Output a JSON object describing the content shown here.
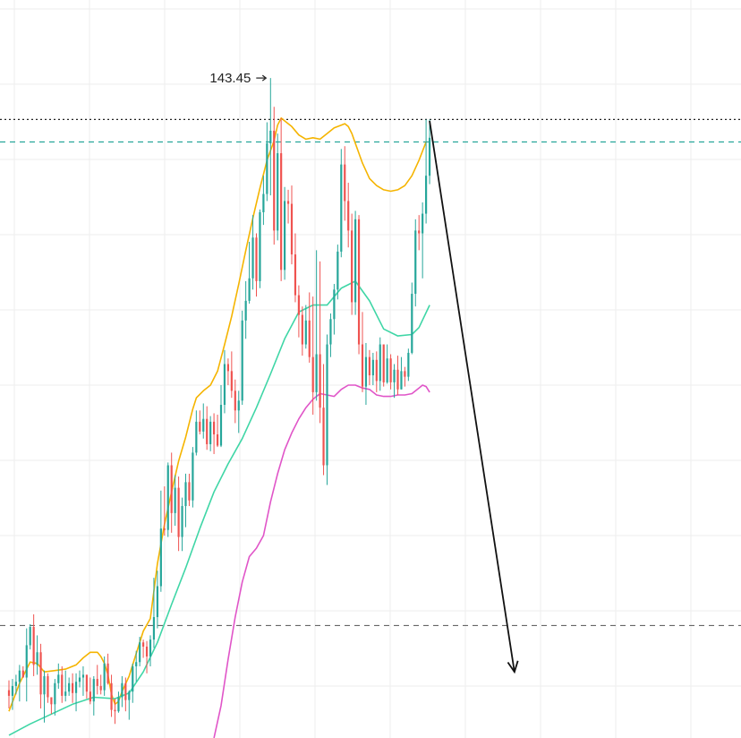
{
  "chart_data": {
    "type": "candlestick",
    "title": "",
    "xlabel": "",
    "ylabel": "",
    "grid": true,
    "ylim": [
      96.5,
      149
    ],
    "colors": {
      "up": "#26a69a",
      "down": "#ef5350",
      "ma_fast": "#f5b400",
      "ma_mid": "#3fd6a6",
      "ma_slow": "#e055c8",
      "resistance": "#222222",
      "support_green": "#26a69a",
      "support_gray": "#666666",
      "arrow": "#111111",
      "grid": "#eeeeee"
    },
    "annotations": {
      "high_label": "143.45",
      "high_value": 143.45
    },
    "levels": {
      "resistance": 140.5,
      "upper_dashed": 138.9,
      "lower_dashed": 104.5
    },
    "projection": {
      "from_bar": 119,
      "from": 140.4,
      "to_bar": 143,
      "to": 101.2
    },
    "candles": [
      [
        99.9,
        100.6,
        98.6,
        99.5
      ],
      [
        99.5,
        100.7,
        98.5,
        100.2
      ],
      [
        100.2,
        101.0,
        99.6,
        100.5
      ],
      [
        100.5,
        101.7,
        99.1,
        101.3
      ],
      [
        101.3,
        101.6,
        100.8,
        100.8
      ],
      [
        100.8,
        104.3,
        99.1,
        103.1
      ],
      [
        103.1,
        104.6,
        102.8,
        104.4
      ],
      [
        104.4,
        105.3,
        100.9,
        101.7
      ],
      [
        101.7,
        103.8,
        101.0,
        102.6
      ],
      [
        102.6,
        103.2,
        98.6,
        99.6
      ],
      [
        99.6,
        101.3,
        97.6,
        100.9
      ],
      [
        100.9,
        101.1,
        99.0,
        99.4
      ],
      [
        99.4,
        99.4,
        98.2,
        98.9
      ],
      [
        98.9,
        100.7,
        98.1,
        100.4
      ],
      [
        100.4,
        101.8,
        100.0,
        101.0
      ],
      [
        101.0,
        101.6,
        99.0,
        99.5
      ],
      [
        99.5,
        101.3,
        99.1,
        99.8
      ],
      [
        99.8,
        100.8,
        99.5,
        100.4
      ],
      [
        100.4,
        101.1,
        99.0,
        99.7
      ],
      [
        99.7,
        101.1,
        98.4,
        100.5
      ],
      [
        100.5,
        101.3,
        100.1,
        100.8
      ],
      [
        100.8,
        101.6,
        99.5,
        101.0
      ],
      [
        101.0,
        101.0,
        99.3,
        99.8
      ],
      [
        99.8,
        100.8,
        98.9,
        99.1
      ],
      [
        99.1,
        100.9,
        98.1,
        100.7
      ],
      [
        100.7,
        101.7,
        99.6,
        100.2
      ],
      [
        100.2,
        101.0,
        99.6,
        99.9
      ],
      [
        99.9,
        102.3,
        99.5,
        101.8
      ],
      [
        101.8,
        102.5,
        100.3,
        100.4
      ],
      [
        100.4,
        101.0,
        98.0,
        98.5
      ],
      [
        98.5,
        99.3,
        97.5,
        98.4
      ],
      [
        98.4,
        99.8,
        98.3,
        99.4
      ],
      [
        99.4,
        100.9,
        98.7,
        100.4
      ],
      [
        100.4,
        100.8,
        98.4,
        99.2
      ],
      [
        99.2,
        99.9,
        97.8,
        99.8
      ],
      [
        99.8,
        101.8,
        99.0,
        101.6
      ],
      [
        101.6,
        102.7,
        100.5,
        101.9
      ],
      [
        101.9,
        103.7,
        101.6,
        103.3
      ],
      [
        103.3,
        103.5,
        102.2,
        103.0
      ],
      [
        103.0,
        103.4,
        101.1,
        102.3
      ],
      [
        102.3,
        103.8,
        101.6,
        103.5
      ],
      [
        103.5,
        107.9,
        102.9,
        105.1
      ],
      [
        105.1,
        108.4,
        104.3,
        107.3
      ],
      [
        107.3,
        114.1,
        106.9,
        111.4
      ],
      [
        111.4,
        114.4,
        110.9,
        111.3
      ],
      [
        111.3,
        116.1,
        110.8,
        115.9
      ],
      [
        115.9,
        116.8,
        111.1,
        112.5
      ],
      [
        112.5,
        115.2,
        111.6,
        114.3
      ],
      [
        114.3,
        115.1,
        109.8,
        110.8
      ],
      [
        110.8,
        113.6,
        109.8,
        113.0
      ],
      [
        113.0,
        115.3,
        111.5,
        114.7
      ],
      [
        114.7,
        115.3,
        113.0,
        113.4
      ],
      [
        113.4,
        117.2,
        112.9,
        116.8
      ],
      [
        116.8,
        119.8,
        116.6,
        119.0
      ],
      [
        119.0,
        119.8,
        118.1,
        118.3
      ],
      [
        118.3,
        120.3,
        117.8,
        119.2
      ],
      [
        119.2,
        120.1,
        117.0,
        117.4
      ],
      [
        117.4,
        119.4,
        116.9,
        119.0
      ],
      [
        119.0,
        119.6,
        116.7,
        118.1
      ],
      [
        118.1,
        119.5,
        117.2,
        117.3
      ],
      [
        117.3,
        121.6,
        117.2,
        120.2
      ],
      [
        120.2,
        124.1,
        119.6,
        123.1
      ],
      [
        123.1,
        123.5,
        121.6,
        122.6
      ],
      [
        122.6,
        124.0,
        120.7,
        121.2
      ],
      [
        121.2,
        122.0,
        118.9,
        119.8
      ],
      [
        119.8,
        121.2,
        118.2,
        120.5
      ],
      [
        120.5,
        126.9,
        120.2,
        126.2
      ],
      [
        126.2,
        129.0,
        124.9,
        127.6
      ],
      [
        127.6,
        131.8,
        127.4,
        129.2
      ],
      [
        129.2,
        133.7,
        128.4,
        132.1
      ],
      [
        132.1,
        132.4,
        127.9,
        129.0
      ],
      [
        129.0,
        134.1,
        128.5,
        133.9
      ],
      [
        133.9,
        136.5,
        133.0,
        135.2
      ],
      [
        135.2,
        140.3,
        134.7,
        138.8
      ],
      [
        138.8,
        143.45,
        135.1,
        139.7
      ],
      [
        139.7,
        141.4,
        131.6,
        132.6
      ],
      [
        132.6,
        139.5,
        131.9,
        138.1
      ],
      [
        138.1,
        140.6,
        129.0,
        129.8
      ],
      [
        129.8,
        135.7,
        129.1,
        134.7
      ],
      [
        134.7,
        135.5,
        133.1,
        134.5
      ],
      [
        134.5,
        135.8,
        130.2,
        130.9
      ],
      [
        130.9,
        132.4,
        127.5,
        128.0
      ],
      [
        128.0,
        128.7,
        125.0,
        126.6
      ],
      [
        126.6,
        127.2,
        123.7,
        124.5
      ],
      [
        124.5,
        127.3,
        124.2,
        126.2
      ],
      [
        126.2,
        128.2,
        123.2,
        123.6
      ],
      [
        123.6,
        127.9,
        119.5,
        121.1
      ],
      [
        121.1,
        131.2,
        120.5,
        123.8
      ],
      [
        123.8,
        130.4,
        118.9,
        120.0
      ],
      [
        120.0,
        123.1,
        115.2,
        115.9
      ],
      [
        115.9,
        125.2,
        114.5,
        124.5
      ],
      [
        124.5,
        126.7,
        123.6,
        126.3
      ],
      [
        126.3,
        128.8,
        125.2,
        128.4
      ],
      [
        128.4,
        131.6,
        127.7,
        131.1
      ],
      [
        131.1,
        138.4,
        130.7,
        137.3
      ],
      [
        137.3,
        138.6,
        133.3,
        134.7
      ],
      [
        134.7,
        136.0,
        131.4,
        132.6
      ],
      [
        132.6,
        133.8,
        126.6,
        127.5
      ],
      [
        127.5,
        134.0,
        126.6,
        133.4
      ],
      [
        133.4,
        133.7,
        123.8,
        124.5
      ],
      [
        124.5,
        126.8,
        121.1,
        121.5
      ],
      [
        121.5,
        124.6,
        120.2,
        123.6
      ],
      [
        123.6,
        124.1,
        121.6,
        122.3
      ],
      [
        122.3,
        123.9,
        121.6,
        123.4
      ],
      [
        123.4,
        124.0,
        121.1,
        121.9
      ],
      [
        121.9,
        125.0,
        121.2,
        124.5
      ],
      [
        124.5,
        124.5,
        121.5,
        121.8
      ],
      [
        121.8,
        124.5,
        121.7,
        123.5
      ],
      [
        123.5,
        123.8,
        121.3,
        121.8
      ],
      [
        121.8,
        123.1,
        120.7,
        122.7
      ],
      [
        122.7,
        123.7,
        120.9,
        121.3
      ],
      [
        121.3,
        123.6,
        121.3,
        122.6
      ],
      [
        122.6,
        122.9,
        121.5,
        122.2
      ],
      [
        122.2,
        124.2,
        121.9,
        123.9
      ],
      [
        123.9,
        128.9,
        123.8,
        128.1
      ],
      [
        128.1,
        133.4,
        127.2,
        132.6
      ],
      [
        132.6,
        133.7,
        131.2,
        132.4
      ],
      [
        132.4,
        134.6,
        129.2,
        133.8
      ],
      [
        133.8,
        140.5,
        133.1,
        136.5
      ],
      [
        136.5,
        140.5,
        135.9,
        139.2
      ]
    ],
    "series": [
      {
        "type": "line",
        "points": [
          [
            0,
            98.4
          ],
          [
            3,
            100.4
          ],
          [
            6,
            101.9
          ],
          [
            8,
            101.8
          ],
          [
            10,
            101.2
          ],
          [
            13,
            101.3
          ],
          [
            16,
            101.4
          ],
          [
            19,
            101.7
          ],
          [
            21,
            102.2
          ],
          [
            23,
            102.6
          ],
          [
            25,
            102.6
          ],
          [
            26,
            102.3
          ],
          [
            27,
            101.8
          ],
          [
            28,
            101.0
          ],
          [
            29,
            99.6
          ],
          [
            30,
            98.9
          ],
          [
            31,
            99.1
          ],
          [
            32,
            99.8
          ],
          [
            34,
            100.9
          ],
          [
            36,
            102.5
          ],
          [
            38,
            104.1
          ],
          [
            40,
            105.0
          ],
          [
            42,
            108.9
          ],
          [
            44,
            111.7
          ],
          [
            46,
            114.0
          ],
          [
            48,
            116.2
          ],
          [
            50,
            117.9
          ],
          [
            52,
            119.9
          ],
          [
            53,
            120.7
          ],
          [
            55,
            121.2
          ],
          [
            57,
            121.6
          ],
          [
            59,
            122.6
          ],
          [
            61,
            124.5
          ],
          [
            63,
            126.5
          ],
          [
            65,
            128.8
          ],
          [
            67,
            131.2
          ],
          [
            69,
            133.5
          ],
          [
            71,
            135.6
          ],
          [
            73,
            137.6
          ],
          [
            75,
            139.0
          ],
          [
            76,
            140.1
          ],
          [
            77,
            140.6
          ],
          [
            78,
            140.4
          ],
          [
            80,
            140.0
          ],
          [
            82,
            139.4
          ],
          [
            84,
            139.1
          ],
          [
            86,
            139.2
          ],
          [
            88,
            139.1
          ],
          [
            90,
            139.5
          ],
          [
            92,
            139.9
          ],
          [
            94,
            140.1
          ],
          [
            95,
            140.2
          ],
          [
            96,
            140.0
          ],
          [
            97,
            139.5
          ],
          [
            98,
            138.8
          ],
          [
            100,
            137.4
          ],
          [
            102,
            136.3
          ],
          [
            104,
            135.8
          ],
          [
            106,
            135.5
          ],
          [
            108,
            135.4
          ],
          [
            110,
            135.5
          ],
          [
            112,
            135.8
          ],
          [
            114,
            136.5
          ],
          [
            116,
            137.6
          ],
          [
            118,
            138.9
          ]
        ]
      },
      {
        "type": "line",
        "points": [
          [
            0,
            96.7
          ],
          [
            6,
            97.5
          ],
          [
            12,
            98.2
          ],
          [
            18,
            98.9
          ],
          [
            24,
            99.4
          ],
          [
            30,
            99.3
          ],
          [
            34,
            99.7
          ],
          [
            38,
            101.2
          ],
          [
            42,
            103.3
          ],
          [
            46,
            106.0
          ],
          [
            50,
            108.6
          ],
          [
            54,
            111.4
          ],
          [
            58,
            114.0
          ],
          [
            62,
            116.0
          ],
          [
            66,
            117.8
          ],
          [
            70,
            120.0
          ],
          [
            74,
            122.4
          ],
          [
            78,
            124.9
          ],
          [
            82,
            126.8
          ],
          [
            86,
            127.3
          ],
          [
            90,
            127.3
          ],
          [
            94,
            128.5
          ],
          [
            98,
            129.0
          ],
          [
            102,
            127.6
          ],
          [
            106,
            125.6
          ],
          [
            110,
            125.1
          ],
          [
            114,
            125.2
          ],
          [
            116,
            125.7
          ],
          [
            119,
            127.3
          ]
        ]
      },
      {
        "type": "line",
        "points": [
          [
            58,
            96.5
          ],
          [
            60,
            98.8
          ],
          [
            62,
            102.1
          ],
          [
            64,
            105.1
          ],
          [
            66,
            107.6
          ],
          [
            68,
            109.4
          ],
          [
            70,
            110.0
          ],
          [
            72,
            110.9
          ],
          [
            74,
            113.3
          ],
          [
            76,
            115.3
          ],
          [
            78,
            117.0
          ],
          [
            80,
            118.2
          ],
          [
            82,
            119.2
          ],
          [
            84,
            120.0
          ],
          [
            86,
            120.6
          ],
          [
            88,
            121.0
          ],
          [
            90,
            120.9
          ],
          [
            92,
            120.8
          ],
          [
            94,
            121.3
          ],
          [
            96,
            121.6
          ],
          [
            98,
            121.6
          ],
          [
            100,
            121.4
          ],
          [
            102,
            121.3
          ],
          [
            104,
            120.9
          ],
          [
            106,
            120.8
          ],
          [
            108,
            120.8
          ],
          [
            110,
            120.9
          ],
          [
            112,
            120.9
          ],
          [
            114,
            121.0
          ],
          [
            116,
            121.4
          ],
          [
            117,
            121.6
          ],
          [
            118,
            121.5
          ],
          [
            119,
            121.1
          ]
        ]
      }
    ]
  }
}
